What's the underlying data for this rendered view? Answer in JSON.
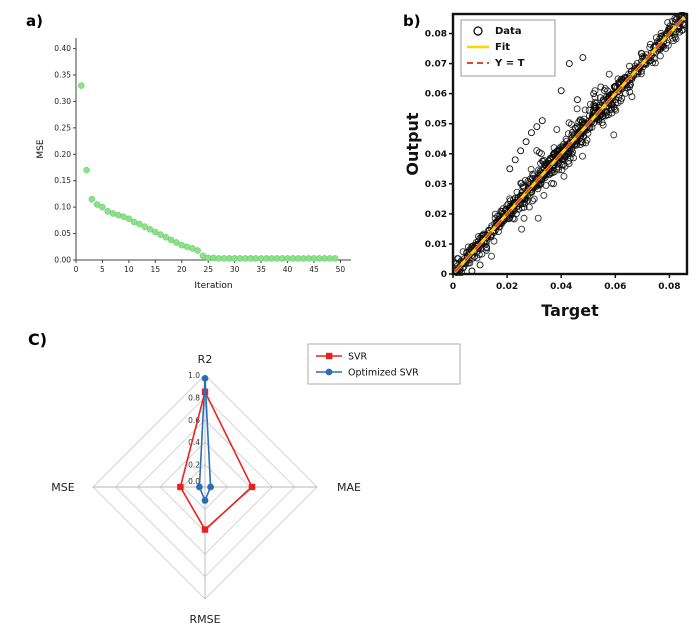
{
  "figure": {
    "background": "#ffffff"
  },
  "panels": {
    "a": {
      "label": "a)"
    },
    "b": {
      "label": "b)"
    },
    "c": {
      "label": "C)"
    }
  },
  "chart_data": [
    {
      "id": "mse-iteration",
      "type": "scatter",
      "title": "",
      "xlabel": "Iteration",
      "ylabel": "MSE",
      "xlim": [
        0,
        52
      ],
      "ylim": [
        0,
        0.42
      ],
      "xticks": [
        0,
        5,
        10,
        15,
        20,
        25,
        30,
        35,
        40,
        45,
        50
      ],
      "yticks": [
        0,
        0.05,
        0.1,
        0.15,
        0.2,
        0.25,
        0.3,
        0.35,
        0.4
      ],
      "marker_color": "#8be28b",
      "marker_edge": "#56c456",
      "x": [
        1,
        2,
        3,
        4,
        5,
        6,
        7,
        8,
        9,
        10,
        11,
        12,
        13,
        14,
        15,
        16,
        17,
        18,
        19,
        20,
        21,
        22,
        23,
        24,
        25,
        26,
        27,
        28,
        29,
        30,
        31,
        32,
        33,
        34,
        35,
        36,
        37,
        38,
        39,
        40,
        41,
        42,
        43,
        44,
        45,
        46,
        47,
        48,
        49
      ],
      "y": [
        0.33,
        0.17,
        0.115,
        0.105,
        0.1,
        0.092,
        0.088,
        0.085,
        0.082,
        0.078,
        0.072,
        0.068,
        0.063,
        0.058,
        0.053,
        0.048,
        0.043,
        0.038,
        0.033,
        0.028,
        0.025,
        0.022,
        0.018,
        0.008,
        0.004,
        0.004,
        0.003,
        0.003,
        0.003,
        0.003,
        0.003,
        0.003,
        0.003,
        0.003,
        0.003,
        0.003,
        0.003,
        0.003,
        0.003,
        0.003,
        0.003,
        0.003,
        0.003,
        0.003,
        0.003,
        0.003,
        0.003,
        0.003,
        0.003
      ]
    },
    {
      "id": "target-output",
      "type": "scatter",
      "title": "",
      "xlabel": "Target",
      "ylabel": "Output",
      "xlim": [
        0,
        0.0865
      ],
      "ylim": [
        0,
        0.0865
      ],
      "xticks": [
        0,
        0.02,
        0.04,
        0.06,
        0.08
      ],
      "yticks": [
        0,
        0.01,
        0.02,
        0.03,
        0.04,
        0.05,
        0.06,
        0.07,
        0.08
      ],
      "colors": {
        "data": "#0a0a0a",
        "fit": "#ffd400",
        "yt": "#e8432a"
      },
      "cloud": {
        "n": 650,
        "xmin": 0.0008,
        "xmax": 0.0855,
        "noise": 0.0018,
        "seed": 42
      },
      "cloud2": {
        "n": 150,
        "xmin": 0.025,
        "xmax": 0.062,
        "noise": 0.004,
        "seed": 77
      },
      "outliers": [
        [
          0.021,
          0.035
        ],
        [
          0.023,
          0.038
        ],
        [
          0.025,
          0.041
        ],
        [
          0.027,
          0.044
        ],
        [
          0.029,
          0.047
        ],
        [
          0.031,
          0.049
        ],
        [
          0.033,
          0.051
        ],
        [
          0.043,
          0.07
        ],
        [
          0.048,
          0.072
        ],
        [
          0.04,
          0.061
        ],
        [
          0.052,
          0.06
        ],
        [
          0.046,
          0.058
        ],
        [
          0.007,
          0.001
        ],
        [
          0.01,
          0.003
        ]
      ],
      "line": {
        "x0": 0.0008,
        "x1": 0.0855
      },
      "legend": {
        "items": [
          {
            "label": "Data",
            "kind": "marker"
          },
          {
            "label": "Fit",
            "kind": "line"
          },
          {
            "label": "Y = T",
            "kind": "dashed"
          }
        ]
      }
    },
    {
      "id": "model-comparison-radar",
      "type": "radar",
      "title": "",
      "axes": [
        "R2",
        "MAE",
        "RMSE",
        "MSE"
      ],
      "ticks": [
        0,
        0.2,
        0.4,
        0.6,
        0.8,
        1.0
      ],
      "grid_color": "#c9c9c9",
      "spoke_color": "#b5b5b5",
      "series": [
        {
          "name": "SVR",
          "color": "#e8231f",
          "marker": "square",
          "values": [
            0.85,
            0.42,
            0.38,
            0.22
          ]
        },
        {
          "name": "Optimized SVR",
          "color": "#2a6ebb",
          "marker": "circle",
          "values": [
            0.97,
            0.05,
            0.12,
            0.05
          ]
        }
      ]
    }
  ]
}
